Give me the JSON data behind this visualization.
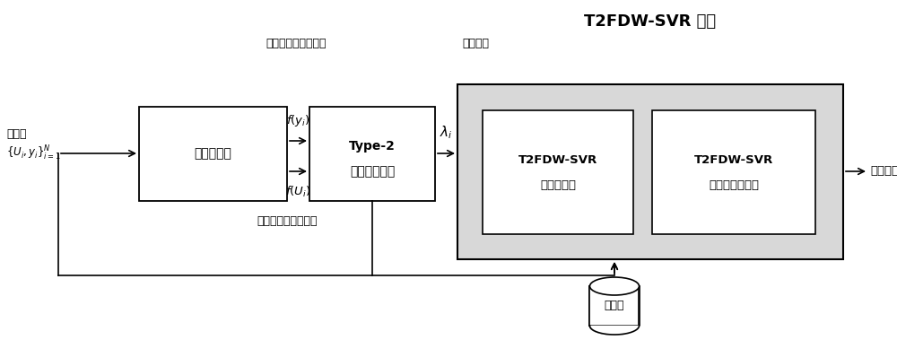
{
  "title": "T2FDW-SVR 模型",
  "label_fuzzy_weight": "模糊权重",
  "label_output_density": "输出样本的分布密度",
  "label_input_density": "输入样本的分布密度",
  "label_kde": "核密度估计",
  "label_type2_line1": "Type-2",
  "label_type2_line2": "模糊逻辑系统",
  "label_opt_line1": "T2FDW-SVR",
  "label_opt_line2": "模型的优化",
  "label_cv_line1": "T2FDW-SVR",
  "label_cv_line2": "模型的交叉验证",
  "label_db": "数据库",
  "label_result": "回归结果",
  "bg_color": "#ffffff",
  "text_color": "#000000"
}
